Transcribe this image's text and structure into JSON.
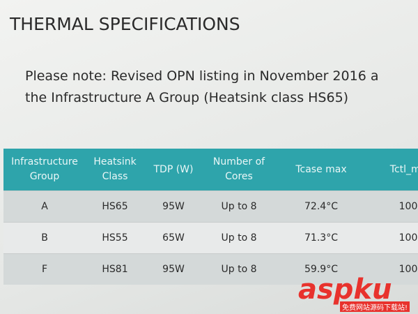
{
  "slide": {
    "title": "THERMAL SPECIFICATIONS",
    "note_lines": [
      "Please note:  Revised OPN listing in November 2016 a",
      "the Infrastructure A Group (Heatsink class HS65)"
    ],
    "table": {
      "headers": [
        [
          "Infrastructure",
          "Group"
        ],
        [
          "Heatsink",
          "Class"
        ],
        [
          "TDP (W)"
        ],
        [
          "Number of",
          "Cores"
        ],
        [
          "Tcase max"
        ],
        [
          "Tctl_ma"
        ]
      ],
      "rows": [
        [
          "A",
          "HS65",
          "95W",
          "Up to 8",
          "72.4°C",
          "100"
        ],
        [
          "B",
          "HS55",
          "65W",
          "Up to 8",
          "71.3°C",
          "100"
        ],
        [
          "F",
          "HS81",
          "95W",
          "Up to 8",
          "59.9°C",
          "100"
        ]
      ]
    },
    "watermark": {
      "brand": "aspku",
      "tagline": "免费网站源码下载站!"
    }
  }
}
